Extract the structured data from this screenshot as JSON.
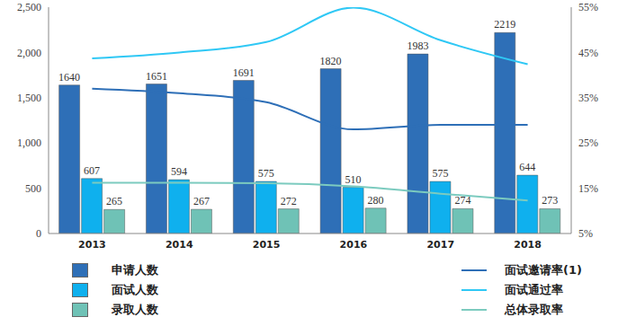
{
  "chart_data": {
    "type": "bar",
    "categories": [
      "2013",
      "2014",
      "2015",
      "2016",
      "2017",
      "2018"
    ],
    "series": [
      {
        "name": "申请人数",
        "type": "bar",
        "color": "#2e6fb7",
        "values": [
          1640,
          1651,
          1691,
          1820,
          1983,
          2219
        ]
      },
      {
        "name": "面试人数",
        "type": "bar",
        "color": "#0fb0ee",
        "values": [
          607,
          594,
          575,
          510,
          575,
          644
        ]
      },
      {
        "name": "录取人数",
        "type": "bar",
        "color": "#6fc2b6",
        "values": [
          265,
          267,
          272,
          280,
          274,
          273
        ]
      },
      {
        "name": "面试邀请率(1)",
        "type": "line",
        "axis": "y2",
        "color": "#2e6fb7",
        "marker": "none",
        "values": [
          37,
          36,
          34,
          28,
          29,
          29
        ]
      },
      {
        "name": "面试通过率",
        "type": "line",
        "axis": "y2",
        "color": "#2fc8f5",
        "marker": "none",
        "values": [
          43.7,
          45,
          47.3,
          54.9,
          47.7,
          42.4
        ]
      },
      {
        "name": "总体录取率",
        "type": "line",
        "axis": "y2",
        "color": "#7ccbbf",
        "marker": "none",
        "values": [
          16.2,
          16.2,
          16.1,
          15.4,
          13.8,
          12.3
        ]
      }
    ],
    "ylim": [
      0,
      2500
    ],
    "yticks": [
      0,
      500,
      {
        "value": 1000,
        "label": "1,000"
      },
      {
        "value": 1500,
        "label": "1,500"
      },
      {
        "value": 2000,
        "label": "2,000"
      },
      {
        "value": 2500,
        "label": "2,500"
      }
    ],
    "y2lim": [
      5,
      55
    ],
    "y2ticks": [
      {
        "value": 5,
        "label": "5%"
      },
      {
        "value": 15,
        "label": "15%"
      },
      {
        "value": 25,
        "label": "25%"
      },
      {
        "value": 35,
        "label": "35%"
      },
      {
        "value": 45,
        "label": "45%"
      },
      {
        "value": 55,
        "label": "55%"
      }
    ],
    "data_labels": true,
    "grid": false,
    "legend": "bottom"
  }
}
